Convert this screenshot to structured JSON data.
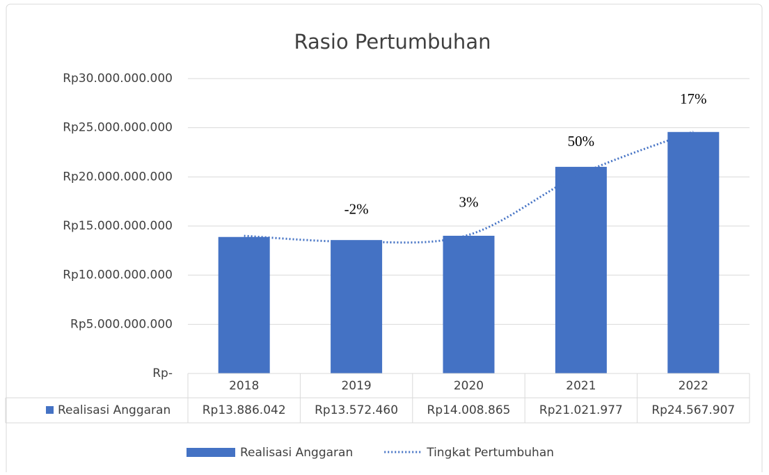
{
  "chart_data": {
    "type": "bar",
    "title": "Rasio Pertumbuhan",
    "categories": [
      "2018",
      "2019",
      "2020",
      "2021",
      "2022"
    ],
    "series": [
      {
        "name": "Realisasi Anggaran",
        "type": "bar",
        "color": "#4472c4",
        "values": [
          13886042000,
          13572460000,
          14008865000,
          21021977000,
          24567907000
        ],
        "value_labels": [
          "Rp13.886.042",
          "Rp13.572.460",
          "Rp14.008.865",
          "Rp21.021.977",
          "Rp24.567.907"
        ]
      },
      {
        "name": "Tingkat Pertumbuhan",
        "type": "line",
        "color": "#4472c4",
        "dotted": true,
        "smooth": true,
        "values": [
          14000000000,
          13400000000,
          14100000000,
          20300000000,
          24600000000
        ]
      }
    ],
    "annotations": [
      {
        "category": "2019",
        "text": "-2%"
      },
      {
        "category": "2020",
        "text": "3%"
      },
      {
        "category": "2021",
        "text": "50%"
      },
      {
        "category": "2022",
        "text": "17%"
      }
    ],
    "ylim": [
      0,
      30000000000
    ],
    "yticks": [
      {
        "value": 0,
        "label": "Rp-"
      },
      {
        "value": 5000000000,
        "label": "Rp5.000.000.000"
      },
      {
        "value": 10000000000,
        "label": "Rp10.000.000.000"
      },
      {
        "value": 15000000000,
        "label": "Rp15.000.000.000"
      },
      {
        "value": 20000000000,
        "label": "Rp20.000.000.000"
      },
      {
        "value": 25000000000,
        "label": "Rp25.000.000.000"
      },
      {
        "value": 30000000000,
        "label": "Rp30.000.000.000"
      }
    ],
    "grid": true,
    "data_table": true,
    "legend": "bottom"
  }
}
